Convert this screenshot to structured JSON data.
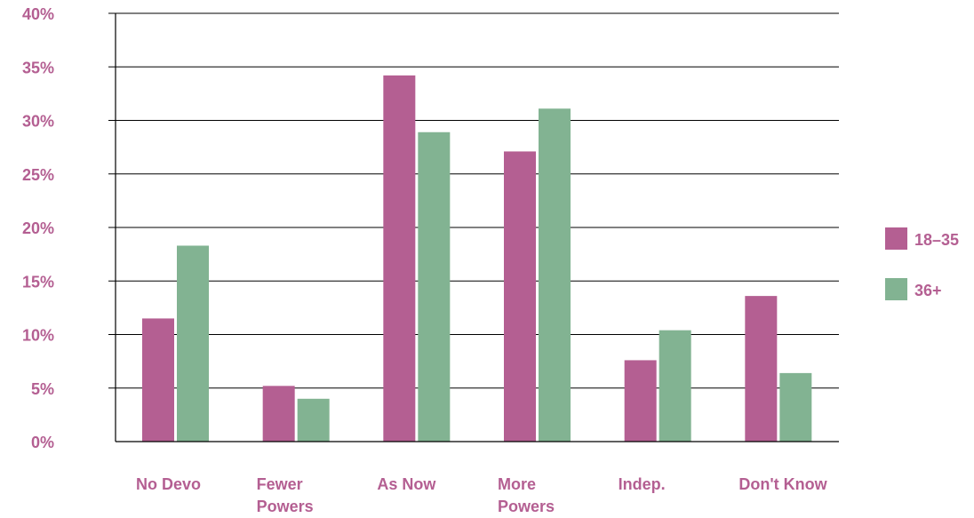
{
  "chart_data": {
    "type": "bar",
    "categories": [
      [
        "No Devo"
      ],
      [
        "Fewer",
        "Powers"
      ],
      [
        "As Now"
      ],
      [
        "More",
        "Powers"
      ],
      [
        "Indep."
      ],
      [
        "Don't Know"
      ]
    ],
    "series": [
      {
        "name": "18–35",
        "color": "#b45f92",
        "values": [
          11.5,
          5.2,
          34.2,
          27.1,
          7.6,
          13.6
        ]
      },
      {
        "name": "36+",
        "color": "#82b392",
        "values": [
          18.3,
          4.0,
          28.9,
          31.1,
          10.4,
          6.4
        ]
      }
    ],
    "y_ticks": [
      "0%",
      "5%",
      "10%",
      "15%",
      "20%",
      "25%",
      "30%",
      "35%",
      "40%"
    ],
    "ylim": [
      0,
      40
    ],
    "grid": true,
    "legend_position": "right",
    "label_color": "#b45f92",
    "title": "",
    "xlabel": "",
    "ylabel": ""
  }
}
